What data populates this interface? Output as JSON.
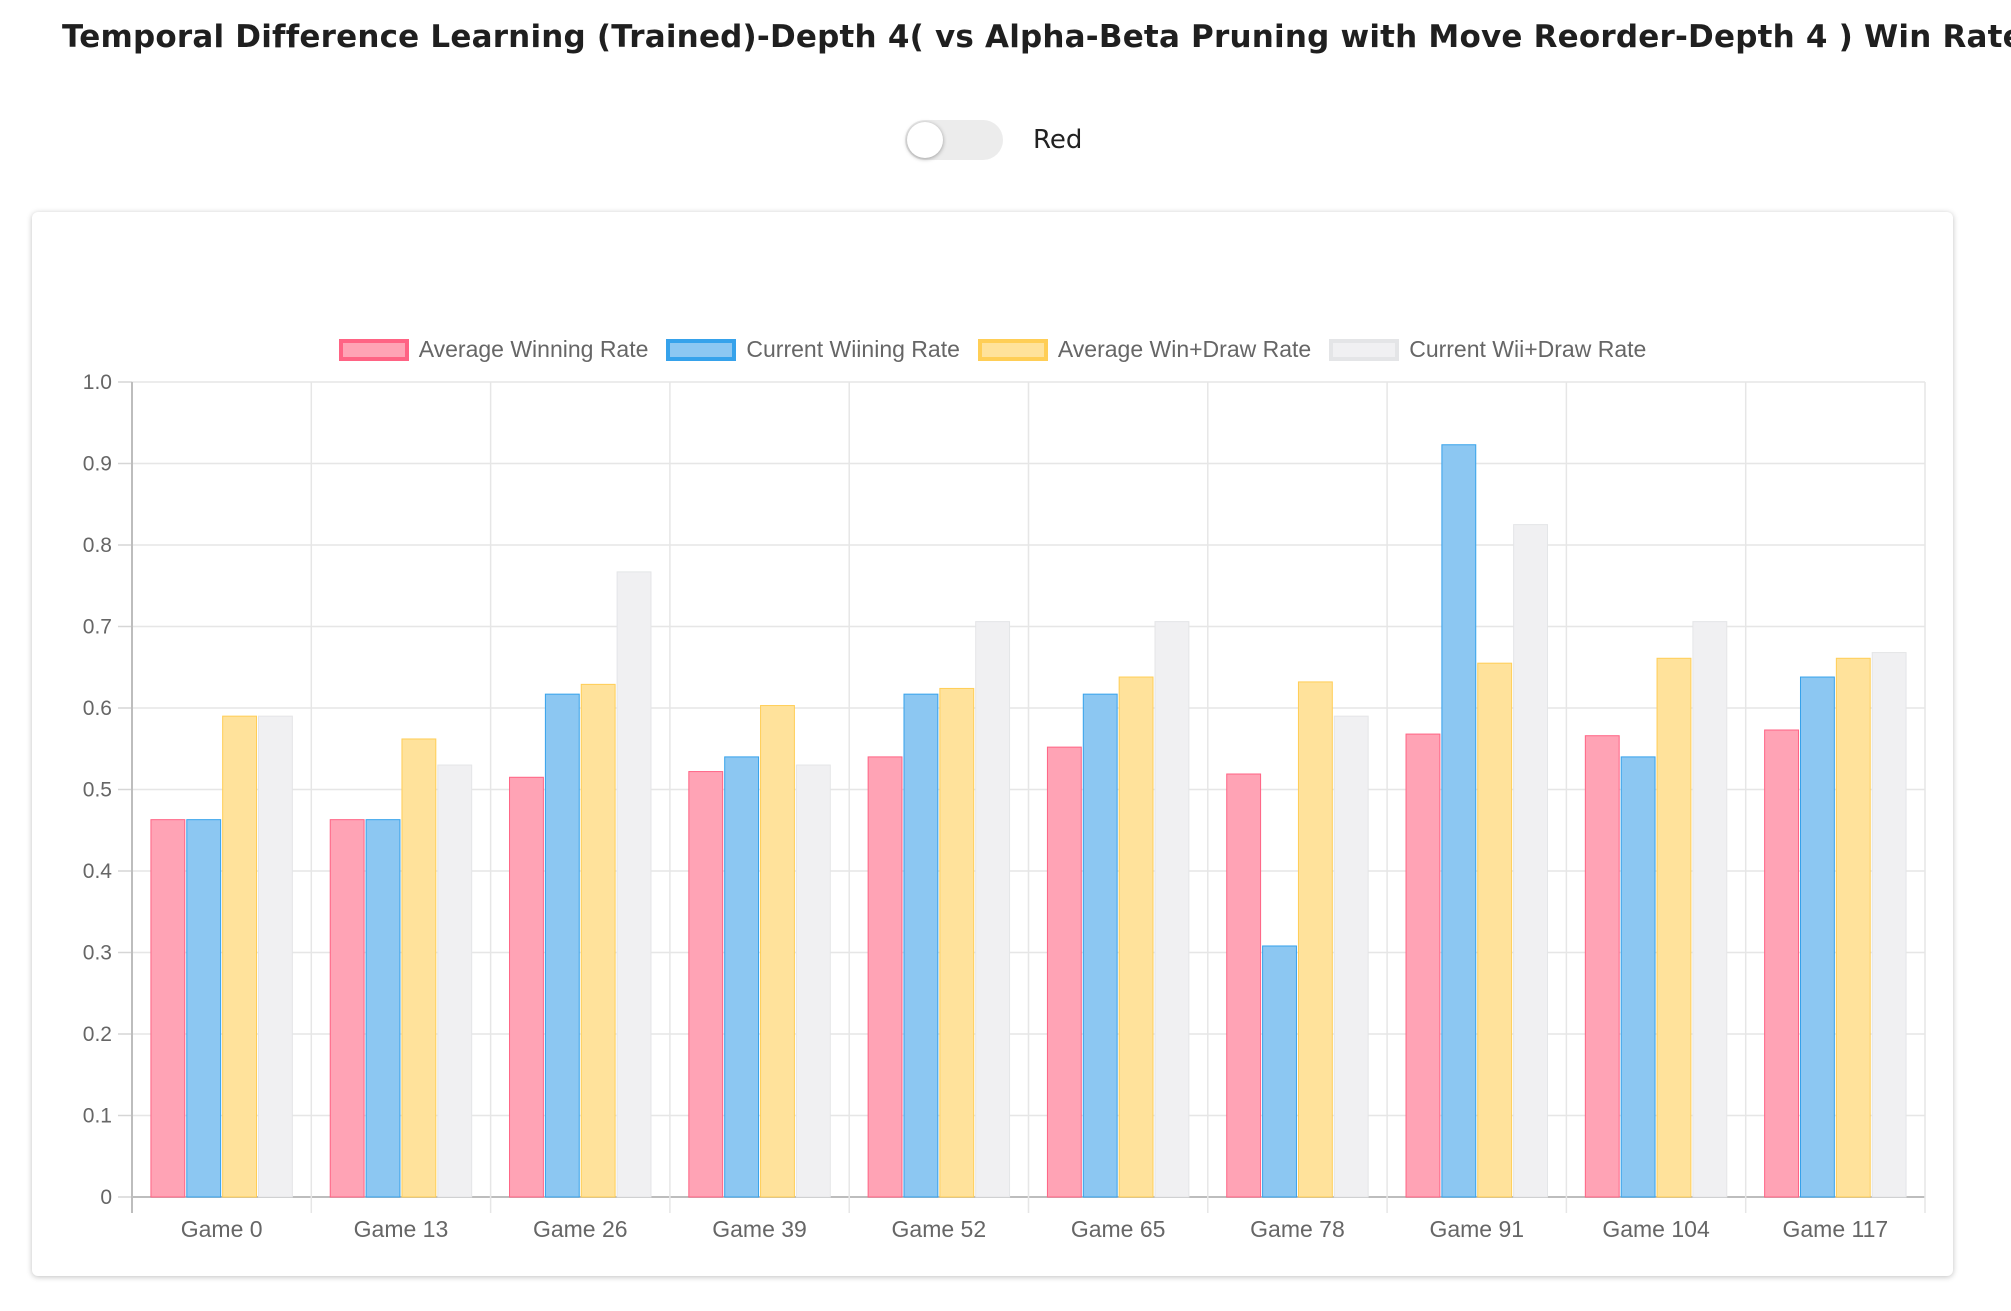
{
  "header": {
    "icon": "bar-chart-icon",
    "title": "Temporal Difference Learning (Trained)-Depth 4( vs Alpha-Beta Pruning with Move Reorder-Depth 4 ) Win Rate"
  },
  "toggle": {
    "label": "Red",
    "checked": false
  },
  "chart_data": {
    "type": "bar",
    "title": "",
    "xlabel": "",
    "ylabel": "",
    "ylim": [
      0,
      1.0
    ],
    "yticks": [
      "0",
      "0.1",
      "0.2",
      "0.3",
      "0.4",
      "0.5",
      "0.6",
      "0.7",
      "0.8",
      "0.9",
      "1.0"
    ],
    "grid": true,
    "legend_position": "top",
    "categories": [
      "Game 0",
      "Game 13",
      "Game 26",
      "Game 39",
      "Game 52",
      "Game 65",
      "Game 78",
      "Game 91",
      "Game 104",
      "Game 117"
    ],
    "series": [
      {
        "name": "Average Winning Rate",
        "fill": "#ffa3b5",
        "stroke": "#ff6384",
        "values": [
          0.463,
          0.463,
          0.515,
          0.522,
          0.54,
          0.552,
          0.519,
          0.568,
          0.566,
          0.573
        ]
      },
      {
        "name": "Current Wiining Rate",
        "fill": "#8cc7f2",
        "stroke": "#36a2eb",
        "values": [
          0.463,
          0.463,
          0.617,
          0.54,
          0.617,
          0.617,
          0.308,
          0.923,
          0.54,
          0.638
        ]
      },
      {
        "name": "Average Win+Draw Rate",
        "fill": "#ffe29b",
        "stroke": "#ffce56",
        "values": [
          0.59,
          0.562,
          0.629,
          0.603,
          0.624,
          0.638,
          0.632,
          0.655,
          0.661,
          0.661
        ]
      },
      {
        "name": "Current Wii+Draw Rate",
        "fill": "#f0f0f2",
        "stroke": "#e4e5e7",
        "values": [
          0.59,
          0.53,
          0.767,
          0.53,
          0.706,
          0.706,
          0.59,
          0.825,
          0.706,
          0.668
        ]
      }
    ]
  }
}
